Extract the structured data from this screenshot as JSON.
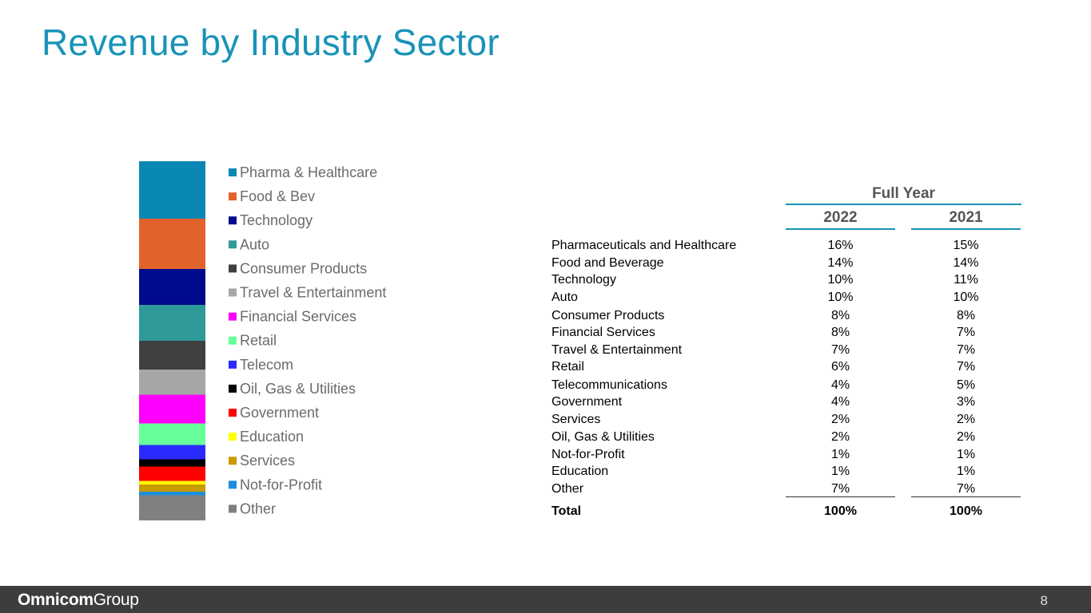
{
  "title": "Revenue by Industry Sector",
  "chart_data": {
    "type": "stacked-bar",
    "title": "",
    "segments": [
      {
        "name": "Pharma & Healthcare",
        "value": 16,
        "color": "#0a88b4"
      },
      {
        "name": "Food & Bev",
        "value": 14,
        "color": "#e2622b"
      },
      {
        "name": "Technology",
        "value": 10,
        "color": "#000a8c"
      },
      {
        "name": "Auto",
        "value": 10,
        "color": "#2e9a9a"
      },
      {
        "name": "Consumer Products",
        "value": 8,
        "color": "#404040"
      },
      {
        "name": "Travel & Entertainment",
        "value": 7,
        "color": "#a6a6a6"
      },
      {
        "name": "Financial Services",
        "value": 8,
        "color": "#ff00ff"
      },
      {
        "name": "Retail",
        "value": 6,
        "color": "#66ff99"
      },
      {
        "name": "Telecom",
        "value": 4,
        "color": "#2a2aff"
      },
      {
        "name": "Oil, Gas & Utilities",
        "value": 2,
        "color": "#000000"
      },
      {
        "name": "Government",
        "value": 4,
        "color": "#ff0000"
      },
      {
        "name": "Education",
        "value": 1,
        "color": "#ffff00"
      },
      {
        "name": "Services",
        "value": 2,
        "color": "#c89b00"
      },
      {
        "name": "Not-for-Profit",
        "value": 1,
        "color": "#1a8fdc"
      },
      {
        "name": "Other",
        "value": 7,
        "color": "#808080"
      }
    ]
  },
  "table": {
    "group_header": "Full Year",
    "years": [
      "2022",
      "2021"
    ],
    "rows": [
      {
        "label": "Pharmaceuticals and Healthcare",
        "v2022": "16%",
        "v2021": "15%"
      },
      {
        "label": "Food and Beverage",
        "v2022": "14%",
        "v2021": "14%"
      },
      {
        "label": "Technology",
        "v2022": "10%",
        "v2021": "11%"
      },
      {
        "label": "Auto",
        "v2022": "10%",
        "v2021": "10%"
      },
      {
        "label": "Consumer Products",
        "v2022": "8%",
        "v2021": "8%"
      },
      {
        "label": "Financial Services",
        "v2022": "8%",
        "v2021": "7%"
      },
      {
        "label": "Travel & Entertainment",
        "v2022": "7%",
        "v2021": "7%"
      },
      {
        "label": "Retail",
        "v2022": "6%",
        "v2021": "7%"
      },
      {
        "label": "Telecommunications",
        "v2022": "4%",
        "v2021": "5%"
      },
      {
        "label": "Government",
        "v2022": "4%",
        "v2021": "3%"
      },
      {
        "label": "Services",
        "v2022": "2%",
        "v2021": "2%"
      },
      {
        "label": "Oil, Gas & Utilities",
        "v2022": "2%",
        "v2021": "2%"
      },
      {
        "label": "Not-for-Profit",
        "v2022": "1%",
        "v2021": "1%"
      },
      {
        "label": "Education",
        "v2022": "1%",
        "v2021": "1%"
      },
      {
        "label": "Other",
        "v2022": "7%",
        "v2021": "7%"
      }
    ],
    "total": {
      "label": "Total",
      "v2022": "100%",
      "v2021": "100%"
    }
  },
  "footer": {
    "logo_bold": "Omnicom",
    "logo_light": "Group",
    "page_number": "8"
  }
}
